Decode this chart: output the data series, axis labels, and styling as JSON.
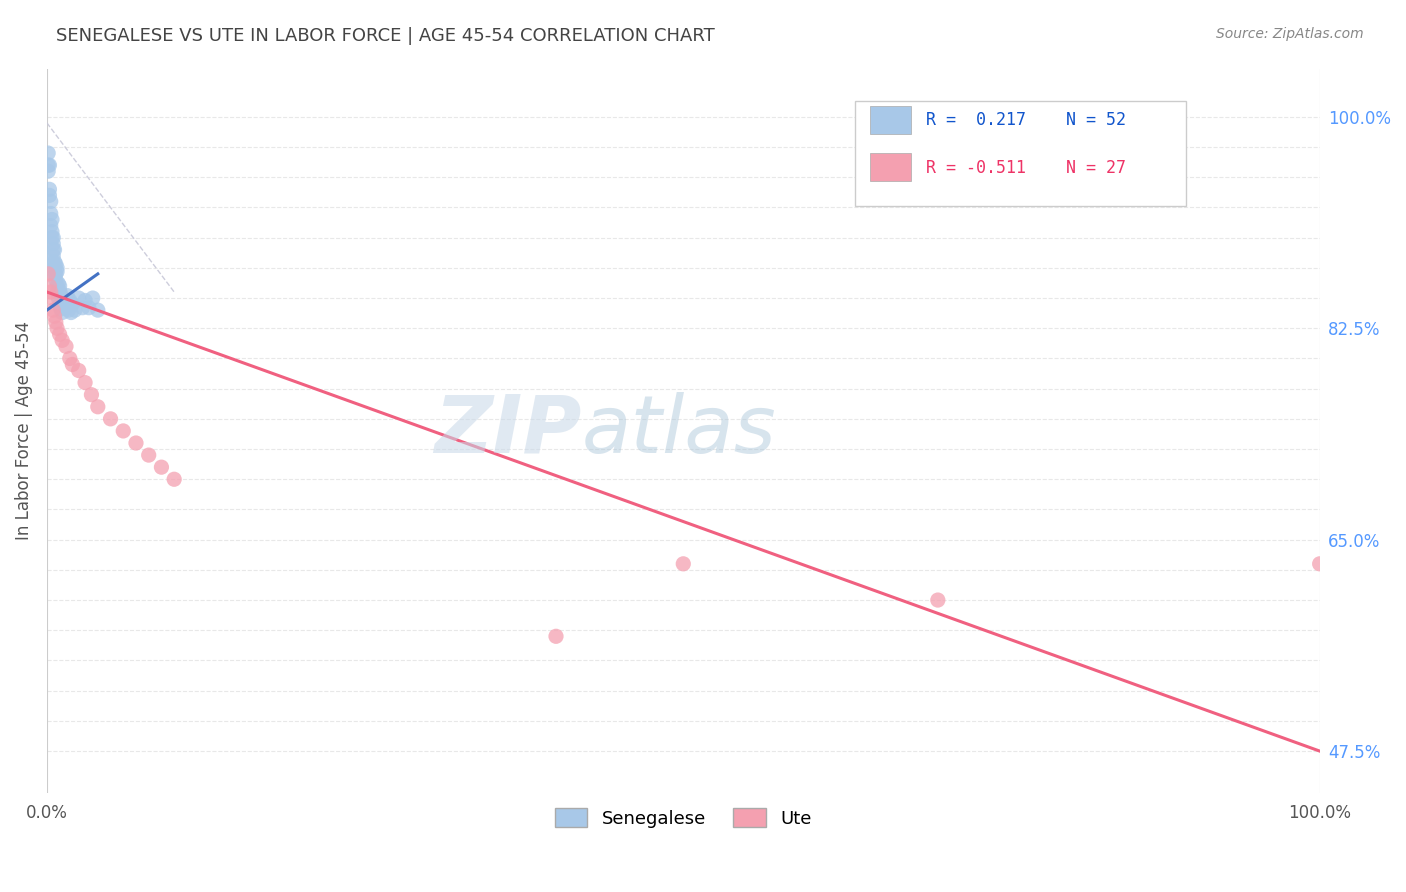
{
  "title": "SENEGALESE VS UTE IN LABOR FORCE | AGE 45-54 CORRELATION CHART",
  "source_text": "Source: ZipAtlas.com",
  "ylabel": "In Labor Force | Age 45-54",
  "xlim": [
    0.0,
    1.0
  ],
  "ylim": [
    0.44,
    1.04
  ],
  "senegalese_color": "#A8C8E8",
  "ute_color": "#F4A0B0",
  "trend_senegalese_color": "#4472C4",
  "trend_ute_color": "#F06080",
  "ref_line_color": "#C8C8D8",
  "R_senegalese": 0.217,
  "N_senegalese": 52,
  "R_ute": -0.511,
  "N_ute": 27,
  "background_color": "#FFFFFF",
  "grid_color": "#E8E8E8",
  "title_color": "#444444",
  "watermark_zip": "ZIP",
  "watermark_atlas": "atlas",
  "legend_R_color_blue": "#1155CC",
  "legend_R_color_pink": "#EE3366",
  "right_tick_color": "#5599FF",
  "senegalese_x": [
    0.001,
    0.001,
    0.001,
    0.002,
    0.002,
    0.002,
    0.003,
    0.003,
    0.003,
    0.004,
    0.004,
    0.004,
    0.005,
    0.005,
    0.005,
    0.005,
    0.006,
    0.006,
    0.006,
    0.007,
    0.007,
    0.007,
    0.008,
    0.008,
    0.008,
    0.009,
    0.009,
    0.01,
    0.01,
    0.011,
    0.011,
    0.012,
    0.012,
    0.013,
    0.014,
    0.015,
    0.016,
    0.017,
    0.018,
    0.019,
    0.02,
    0.022,
    0.025,
    0.028,
    0.03,
    0.033,
    0.036,
    0.04,
    0.004,
    0.006,
    0.008,
    0.01
  ],
  "senegalese_y": [
    0.97,
    0.96,
    0.955,
    0.94,
    0.935,
    0.96,
    0.93,
    0.92,
    0.91,
    0.905,
    0.915,
    0.9,
    0.895,
    0.89,
    0.9,
    0.885,
    0.88,
    0.875,
    0.89,
    0.87,
    0.878,
    0.865,
    0.86,
    0.872,
    0.855,
    0.862,
    0.85,
    0.856,
    0.844,
    0.853,
    0.841,
    0.85,
    0.838,
    0.847,
    0.845,
    0.842,
    0.852,
    0.84,
    0.848,
    0.838,
    0.845,
    0.84,
    0.85,
    0.842,
    0.848,
    0.842,
    0.85,
    0.84,
    0.88,
    0.87,
    0.875,
    0.86
  ],
  "ute_x": [
    0.001,
    0.002,
    0.003,
    0.004,
    0.005,
    0.006,
    0.007,
    0.008,
    0.01,
    0.012,
    0.015,
    0.018,
    0.02,
    0.025,
    0.03,
    0.035,
    0.04,
    0.05,
    0.06,
    0.07,
    0.08,
    0.09,
    0.1,
    0.5,
    0.7,
    1.0,
    0.4
  ],
  "ute_y": [
    0.87,
    0.86,
    0.855,
    0.85,
    0.84,
    0.835,
    0.83,
    0.825,
    0.82,
    0.815,
    0.81,
    0.8,
    0.795,
    0.79,
    0.78,
    0.77,
    0.76,
    0.75,
    0.74,
    0.73,
    0.72,
    0.71,
    0.7,
    0.63,
    0.6,
    0.63,
    0.57
  ],
  "ute_trend_x0": 0.0,
  "ute_trend_y0": 0.855,
  "ute_trend_x1": 1.0,
  "ute_trend_y1": 0.475,
  "sen_trend_x0": 0.0,
  "sen_trend_y0": 0.84,
  "sen_trend_x1": 0.04,
  "sen_trend_y1": 0.87
}
